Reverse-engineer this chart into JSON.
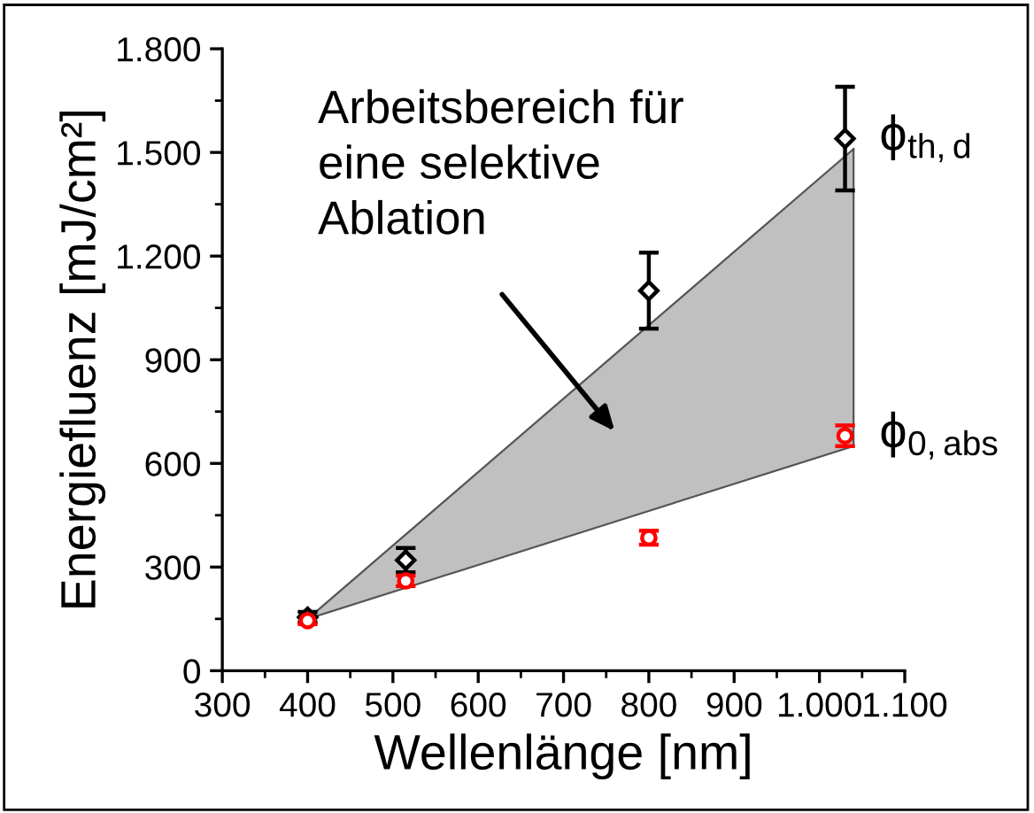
{
  "chart_data": {
    "type": "scatter",
    "xlabel": "Wellenlänge [nm]",
    "ylabel": "Energiefluenz [mJ/cm²]",
    "xlim": [
      300,
      1100
    ],
    "ylim": [
      0,
      1800
    ],
    "xticks": [
      300,
      400,
      500,
      600,
      700,
      800,
      900,
      {
        "value": 1000,
        "label": "1.000"
      },
      {
        "value": 1100,
        "label": "1.100"
      }
    ],
    "yticks": [
      0,
      300,
      600,
      900,
      {
        "value": 1200,
        "label": "1.200"
      },
      {
        "value": 1500,
        "label": "1.500"
      },
      {
        "value": 1800,
        "label": "1.800"
      }
    ],
    "grid": false,
    "legend": false,
    "series": [
      {
        "type": "line",
        "x": [
          400,
          1040
        ],
        "values": [
          150,
          650
        ],
        "lower": [
          150,
          650
        ],
        "upper": [
          150,
          1510
        ],
        "color": "#555555"
      },
      {
        "name": "ϕ$_{th,d}$",
        "x": [
          400,
          515,
          800,
          1030
        ],
        "values": [
          155,
          320,
          1100,
          1540
        ],
        "errors": [
          15,
          35,
          110,
          150
        ],
        "color": "#000000",
        "marker": "diamond"
      },
      {
        "name": "ϕ$_{0,abs}$",
        "x": [
          400,
          515,
          800,
          1030
        ],
        "values": [
          145,
          260,
          385,
          680
        ],
        "errors": [
          10,
          15,
          20,
          30
        ],
        "color": "#ff0000",
        "marker": "circle"
      }
    ],
    "annotations": [
      "Arbeitsbereich für\neine selektive\nAblation"
    ]
  }
}
